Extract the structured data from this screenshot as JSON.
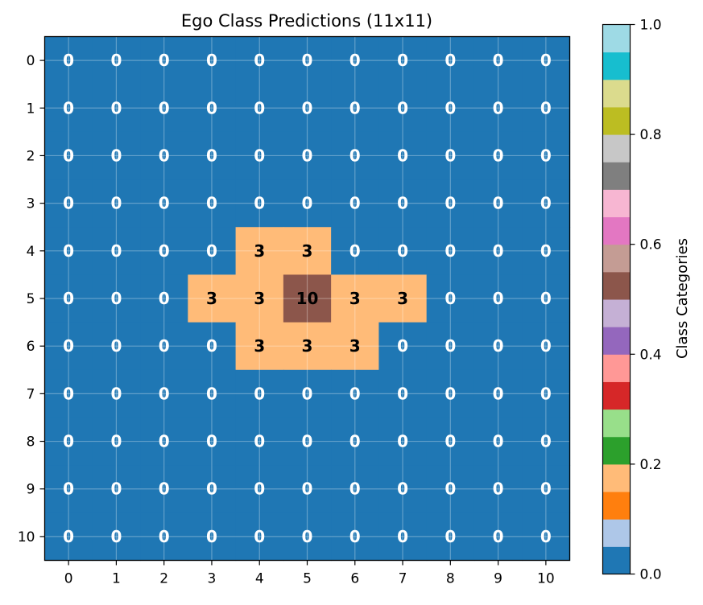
{
  "chart_data": {
    "type": "heatmap",
    "title": "Ego Class Predictions (11x11)",
    "xlabel": "",
    "ylabel": "",
    "x_ticks": [
      "0",
      "1",
      "2",
      "3",
      "4",
      "5",
      "6",
      "7",
      "8",
      "9",
      "10"
    ],
    "y_ticks": [
      "0",
      "1",
      "2",
      "3",
      "4",
      "5",
      "6",
      "7",
      "8",
      "9",
      "10"
    ],
    "grid": true,
    "values": [
      [
        0,
        0,
        0,
        0,
        0,
        0,
        0,
        0,
        0,
        0,
        0
      ],
      [
        0,
        0,
        0,
        0,
        0,
        0,
        0,
        0,
        0,
        0,
        0
      ],
      [
        0,
        0,
        0,
        0,
        0,
        0,
        0,
        0,
        0,
        0,
        0
      ],
      [
        0,
        0,
        0,
        0,
        0,
        0,
        0,
        0,
        0,
        0,
        0
      ],
      [
        0,
        0,
        0,
        0,
        3,
        3,
        0,
        0,
        0,
        0,
        0
      ],
      [
        0,
        0,
        0,
        3,
        3,
        10,
        3,
        3,
        0,
        0,
        0
      ],
      [
        0,
        0,
        0,
        0,
        3,
        3,
        3,
        0,
        0,
        0,
        0
      ],
      [
        0,
        0,
        0,
        0,
        0,
        0,
        0,
        0,
        0,
        0,
        0
      ],
      [
        0,
        0,
        0,
        0,
        0,
        0,
        0,
        0,
        0,
        0,
        0
      ],
      [
        0,
        0,
        0,
        0,
        0,
        0,
        0,
        0,
        0,
        0,
        0
      ],
      [
        0,
        0,
        0,
        0,
        0,
        0,
        0,
        0,
        0,
        0,
        0
      ]
    ],
    "colormap": "tab20",
    "colorbar": {
      "label": "Class Categories",
      "ticks": [
        "0.0",
        "0.2",
        "0.4",
        "0.6",
        "0.8",
        "1.0"
      ],
      "range": [
        0,
        1
      ],
      "colors": [
        "#1f77b4",
        "#aec7e8",
        "#ff7f0e",
        "#ffbb78",
        "#2ca02c",
        "#98df8a",
        "#d62728",
        "#ff9896",
        "#9467bd",
        "#c5b0d5",
        "#8c564b",
        "#c49c94",
        "#e377c2",
        "#f7b6d2",
        "#7f7f7f",
        "#c7c7c7",
        "#bcbd22",
        "#dbdb8d",
        "#17becf",
        "#9edae5"
      ]
    }
  }
}
